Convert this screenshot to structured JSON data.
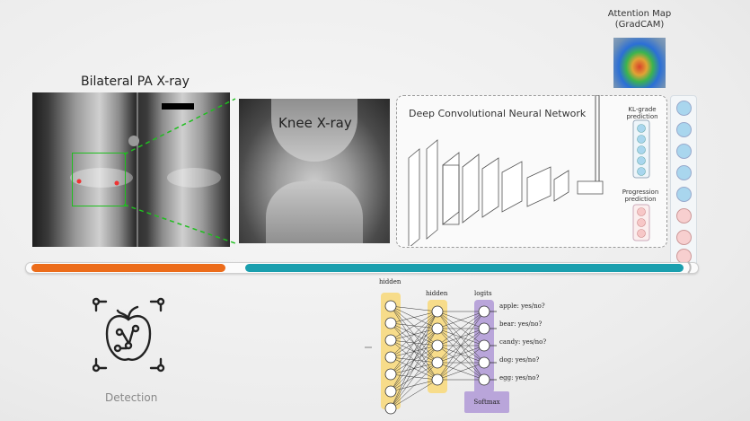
{
  "pipeline": {
    "bilateral_title": "Bilateral PA X-ray",
    "knee_label": "Knee X-ray",
    "cnn_title": "Deep Convolutional Neural Network",
    "kl_label": "KL-grade prediction",
    "progression_label": "Progression prediction",
    "attention_title_1": "Attention Map",
    "attention_title_2": "(GradCAM)"
  },
  "progress": {
    "orange_fraction": 0.29,
    "teal_fraction": 0.65,
    "colors": {
      "orange": "#ec6c1a",
      "teal": "#1a9fae"
    }
  },
  "detection": {
    "label": "Detection",
    "icon": "apple-detection-icon"
  },
  "network": {
    "layer_labels": [
      "hidden",
      "hidden",
      "logits"
    ],
    "softmax_label": "Softmax",
    "outputs": [
      "apple: yes/no?",
      "bear: yes/no?",
      "candy: yes/no?",
      "dog: yes/no?",
      "egg: yes/no?"
    ],
    "colors": {
      "hidden": "#f7dc8a",
      "logits": "#b9a5da",
      "softmax": "#b9a5da"
    }
  }
}
